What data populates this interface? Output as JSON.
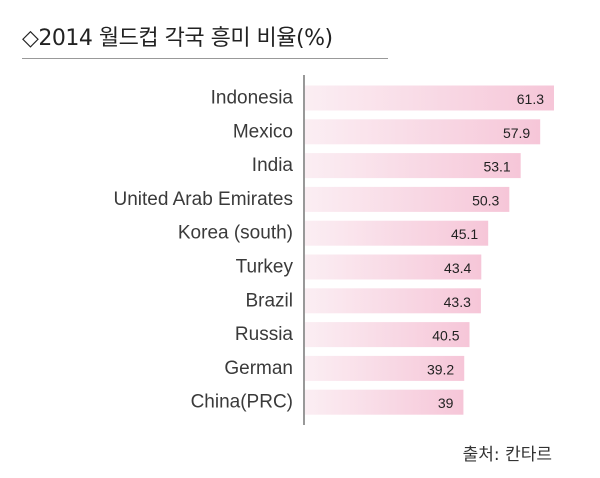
{
  "title": "◇2014 월드컵 각국 흥미 비율(%)",
  "source": "출처: 칸타르",
  "colors": {
    "bar_light": "#fbeef3",
    "bar_dark": "#f6c6d8",
    "axis": "#555555"
  },
  "chart_data": {
    "type": "bar",
    "orientation": "horizontal",
    "title": "◇2014 월드컵 각국 흥미 비율(%)",
    "categories": [
      "Indonesia",
      "Mexico",
      "India",
      "United Arab Emirates",
      "Korea (south)",
      "Turkey",
      "Brazil",
      "Russia",
      "German",
      "China(PRC)"
    ],
    "values": [
      61.3,
      57.9,
      53.1,
      50.3,
      45.1,
      43.4,
      43.3,
      40.5,
      39.2,
      39
    ],
    "value_labels": [
      "61.3",
      "57.9",
      "53.1",
      "50.3",
      "45.1",
      "43.4",
      "43.3",
      "40.5",
      "39.2",
      "39"
    ],
    "xlim": [
      0,
      61.3
    ],
    "grid": false,
    "legend": "none"
  }
}
